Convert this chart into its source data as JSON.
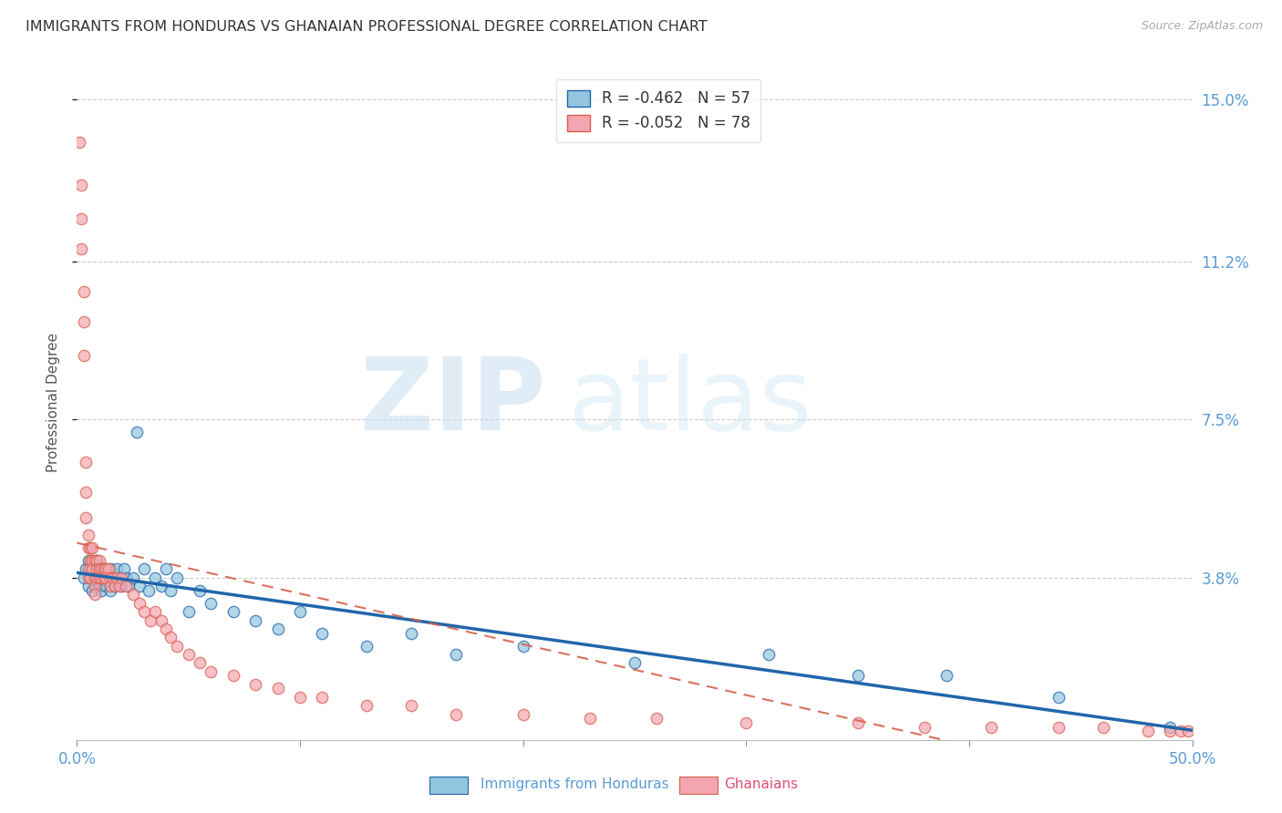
{
  "title": "IMMIGRANTS FROM HONDURAS VS GHANAIAN PROFESSIONAL DEGREE CORRELATION CHART",
  "source": "Source: ZipAtlas.com",
  "ylabel": "Professional Degree",
  "xlim": [
    0.0,
    0.5
  ],
  "ylim": [
    0.0,
    0.158
  ],
  "ytick_vals": [
    0.038,
    0.075,
    0.112,
    0.15
  ],
  "ytick_labels": [
    "3.8%",
    "7.5%",
    "11.2%",
    "15.0%"
  ],
  "legend1_label": "R = -0.462   N = 57",
  "legend2_label": "R = -0.052   N = 78",
  "legend_xlabel": "Immigrants from Honduras",
  "legend_ylabel": "Ghanaians",
  "blue_color": "#92c5de",
  "pink_color": "#f4a6b0",
  "blue_line_color": "#2166ac",
  "pink_line_color": "#d6604d",
  "axis_color": "#5b9bd5",
  "grid_color": "#cccccc",
  "blue_x": [
    0.003,
    0.004,
    0.005,
    0.005,
    0.006,
    0.007,
    0.007,
    0.008,
    0.008,
    0.009,
    0.01,
    0.01,
    0.011,
    0.011,
    0.012,
    0.012,
    0.013,
    0.013,
    0.014,
    0.015,
    0.015,
    0.016,
    0.017,
    0.018,
    0.019,
    0.02,
    0.021,
    0.022,
    0.023,
    0.025,
    0.027,
    0.028,
    0.03,
    0.032,
    0.035,
    0.038,
    0.04,
    0.042,
    0.045,
    0.05,
    0.055,
    0.06,
    0.07,
    0.08,
    0.09,
    0.1,
    0.11,
    0.13,
    0.15,
    0.17,
    0.2,
    0.25,
    0.31,
    0.35,
    0.39,
    0.44,
    0.49
  ],
  "blue_y": [
    0.038,
    0.04,
    0.042,
    0.036,
    0.04,
    0.038,
    0.035,
    0.04,
    0.038,
    0.042,
    0.036,
    0.04,
    0.038,
    0.035,
    0.04,
    0.038,
    0.036,
    0.04,
    0.038,
    0.04,
    0.035,
    0.038,
    0.036,
    0.04,
    0.038,
    0.036,
    0.04,
    0.038,
    0.036,
    0.038,
    0.072,
    0.036,
    0.04,
    0.035,
    0.038,
    0.036,
    0.04,
    0.035,
    0.038,
    0.03,
    0.035,
    0.032,
    0.03,
    0.028,
    0.026,
    0.03,
    0.025,
    0.022,
    0.025,
    0.02,
    0.022,
    0.018,
    0.02,
    0.015,
    0.015,
    0.01,
    0.003
  ],
  "pink_x": [
    0.001,
    0.002,
    0.002,
    0.002,
    0.003,
    0.003,
    0.003,
    0.004,
    0.004,
    0.004,
    0.005,
    0.005,
    0.005,
    0.005,
    0.006,
    0.006,
    0.006,
    0.007,
    0.007,
    0.007,
    0.008,
    0.008,
    0.008,
    0.008,
    0.009,
    0.009,
    0.009,
    0.01,
    0.01,
    0.01,
    0.011,
    0.011,
    0.012,
    0.012,
    0.013,
    0.013,
    0.014,
    0.015,
    0.015,
    0.016,
    0.017,
    0.018,
    0.019,
    0.02,
    0.022,
    0.025,
    0.028,
    0.03,
    0.033,
    0.035,
    0.038,
    0.04,
    0.042,
    0.045,
    0.05,
    0.055,
    0.06,
    0.07,
    0.08,
    0.09,
    0.1,
    0.11,
    0.13,
    0.15,
    0.17,
    0.2,
    0.23,
    0.26,
    0.3,
    0.35,
    0.38,
    0.41,
    0.44,
    0.46,
    0.48,
    0.49,
    0.495,
    0.498
  ],
  "pink_y": [
    0.14,
    0.13,
    0.122,
    0.115,
    0.105,
    0.098,
    0.09,
    0.065,
    0.058,
    0.052,
    0.048,
    0.045,
    0.04,
    0.038,
    0.045,
    0.042,
    0.038,
    0.045,
    0.042,
    0.04,
    0.042,
    0.038,
    0.036,
    0.034,
    0.042,
    0.04,
    0.038,
    0.042,
    0.04,
    0.038,
    0.04,
    0.038,
    0.04,
    0.038,
    0.04,
    0.038,
    0.04,
    0.038,
    0.036,
    0.038,
    0.036,
    0.038,
    0.036,
    0.038,
    0.036,
    0.034,
    0.032,
    0.03,
    0.028,
    0.03,
    0.028,
    0.026,
    0.024,
    0.022,
    0.02,
    0.018,
    0.016,
    0.015,
    0.013,
    0.012,
    0.01,
    0.01,
    0.008,
    0.008,
    0.006,
    0.006,
    0.005,
    0.005,
    0.004,
    0.004,
    0.003,
    0.003,
    0.003,
    0.003,
    0.002,
    0.002,
    0.002,
    0.002
  ]
}
